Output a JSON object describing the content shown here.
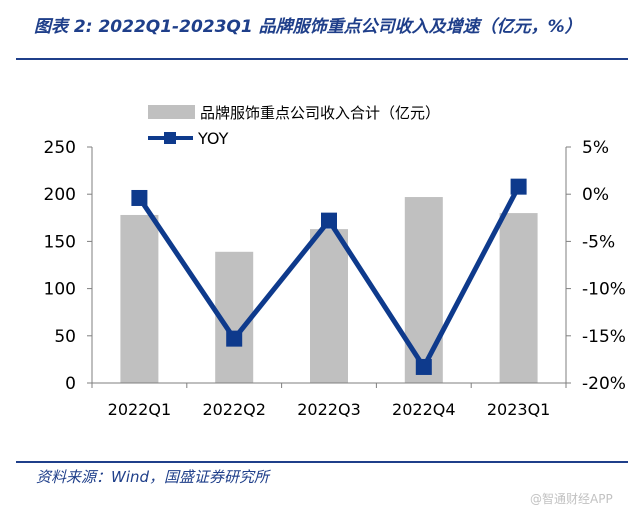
{
  "title": "图表 2:  2022Q1-2023Q1 品牌服饰重点公司收入及增速（亿元，%）",
  "source": "资料来源：Wind，国盛证券研究所",
  "watermark": "@智通财经APP",
  "colors": {
    "accent": "#1f3f8a",
    "bar": "#c0c0c0",
    "line": "#0e3a8c"
  },
  "chart_data": {
    "type": "bar",
    "categories": [
      "2022Q1",
      "2022Q2",
      "2022Q3",
      "2022Q4",
      "2023Q1"
    ],
    "series": [
      {
        "name": "品牌服饰重点公司收入合计（亿元）",
        "type": "bar",
        "axis": "left",
        "values": [
          178,
          139,
          163,
          197,
          180
        ]
      },
      {
        "name": "YOY",
        "type": "line",
        "axis": "right",
        "values": [
          -0.4,
          -15.3,
          -2.8,
          -18.3,
          0.8
        ]
      }
    ],
    "y_left": {
      "min": 0,
      "max": 250,
      "ticks": [
        0,
        50,
        100,
        150,
        200,
        250
      ],
      "tick_labels": [
        "0",
        "50",
        "100",
        "150",
        "200",
        "250"
      ]
    },
    "y_right": {
      "min": -20,
      "max": 5,
      "ticks": [
        -20,
        -15,
        -10,
        -5,
        0,
        5
      ],
      "tick_labels": [
        "-20%",
        "-15%",
        "-10%",
        "-5%",
        "0%",
        "5%"
      ]
    },
    "legend": "top-center"
  }
}
